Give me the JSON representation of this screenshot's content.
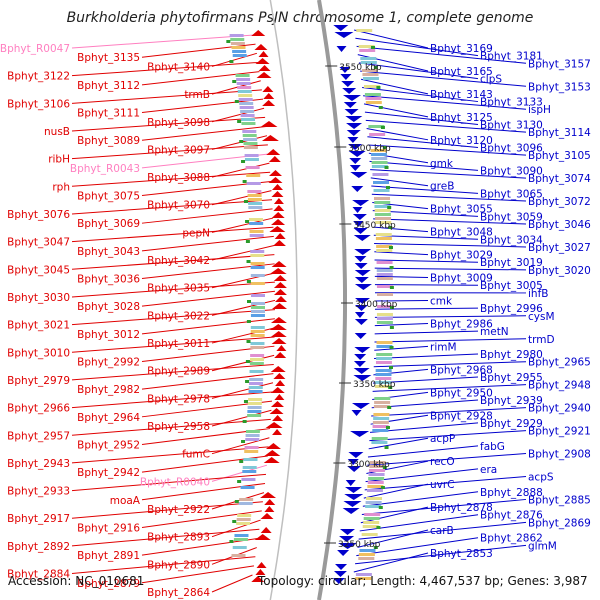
{
  "title": "Burkholderia phytofirmans PsJN chromosome 1, complete genome",
  "accession": "Accession: NC_010681",
  "footer": "Topology: circular; Length: 4,467,537 bp; Genes: 3,987",
  "colors": {
    "left_gene": "#e00000",
    "left_rna": "#ff7fc0",
    "right_gene": "#0000cc",
    "backbone": "#9a9a9a",
    "tick": "#2a9a2a"
  },
  "kbp_labels": [
    "3550 kbp",
    "3500 kbp",
    "3450 kbp",
    "3400 kbp",
    "3350 kbp",
    "3300 kbp",
    "3250 kbp"
  ],
  "left_labels": [
    {
      "t": "Bphyt_R0047",
      "rna": true
    },
    {
      "t": "Bphyt_3135"
    },
    {
      "t": "Bphyt_3140"
    },
    {
      "t": "Bphyt_3122"
    },
    {
      "t": "Bphyt_3112"
    },
    {
      "t": "trmB"
    },
    {
      "t": "Bphyt_3106"
    },
    {
      "t": "Bphyt_3111"
    },
    {
      "t": "Bphyt_3098"
    },
    {
      "t": "nusB"
    },
    {
      "t": "Bphyt_3089"
    },
    {
      "t": "Bphyt_3097"
    },
    {
      "t": "ribH"
    },
    {
      "t": "Bphyt_R0043",
      "rna": true
    },
    {
      "t": "Bphyt_3088"
    },
    {
      "t": "rph"
    },
    {
      "t": "Bphyt_3075"
    },
    {
      "t": "Bphyt_3070"
    },
    {
      "t": "Bphyt_3076"
    },
    {
      "t": "Bphyt_3069"
    },
    {
      "t": "pepN"
    },
    {
      "t": "Bphyt_3047"
    },
    {
      "t": "Bphyt_3043"
    },
    {
      "t": "Bphyt_3042"
    },
    {
      "t": "Bphyt_3045"
    },
    {
      "t": "Bphyt_3036"
    },
    {
      "t": "Bphyt_3035"
    },
    {
      "t": "Bphyt_3030"
    },
    {
      "t": "Bphyt_3028"
    },
    {
      "t": "Bphyt_3022"
    },
    {
      "t": "Bphyt_3021"
    },
    {
      "t": "Bphyt_3012"
    },
    {
      "t": "Bphyt_3011"
    },
    {
      "t": "Bphyt_3010"
    },
    {
      "t": "Bphyt_2992"
    },
    {
      "t": "Bphyt_2989"
    },
    {
      "t": "Bphyt_2979"
    },
    {
      "t": "Bphyt_2982"
    },
    {
      "t": "Bphyt_2978"
    },
    {
      "t": "Bphyt_2966"
    },
    {
      "t": "Bphyt_2964"
    },
    {
      "t": "Bphyt_2958"
    },
    {
      "t": "Bphyt_2957"
    },
    {
      "t": "Bphyt_2952"
    },
    {
      "t": "fumC"
    },
    {
      "t": "Bphyt_2943"
    },
    {
      "t": "Bphyt_2942"
    },
    {
      "t": "Bphyt_R0040",
      "rna": true
    },
    {
      "t": "Bphyt_2933"
    },
    {
      "t": "moaA"
    },
    {
      "t": "Bphyt_2922"
    },
    {
      "t": "Bphyt_2917"
    },
    {
      "t": "Bphyt_2916"
    },
    {
      "t": "Bphyt_2893"
    },
    {
      "t": "Bphyt_2892"
    },
    {
      "t": "Bphyt_2891"
    },
    {
      "t": "Bphyt_2890"
    },
    {
      "t": "Bphyt_2884"
    },
    {
      "t": "Bphyt_2879"
    },
    {
      "t": "Bphyt_2864"
    }
  ],
  "right_labels": [
    {
      "t": "Bphyt_3169"
    },
    {
      "t": "Bphyt_3181"
    },
    {
      "t": "Bphyt_3157"
    },
    {
      "t": "Bphyt_3165"
    },
    {
      "t": "clpS"
    },
    {
      "t": "Bphyt_3153"
    },
    {
      "t": "Bphyt_3143"
    },
    {
      "t": "Bphyt_3133"
    },
    {
      "t": "ispH"
    },
    {
      "t": "Bphyt_3125"
    },
    {
      "t": "Bphyt_3130"
    },
    {
      "t": "Bphyt_3114"
    },
    {
      "t": "Bphyt_3120"
    },
    {
      "t": "Bphyt_3096"
    },
    {
      "t": "Bphyt_3105"
    },
    {
      "t": "gmk"
    },
    {
      "t": "Bphyt_3090"
    },
    {
      "t": "Bphyt_3074"
    },
    {
      "t": "greB"
    },
    {
      "t": "Bphyt_3065"
    },
    {
      "t": "Bphyt_3072"
    },
    {
      "t": "Bphyt_3055"
    },
    {
      "t": "Bphyt_3059"
    },
    {
      "t": "Bphyt_3046"
    },
    {
      "t": "Bphyt_3048"
    },
    {
      "t": "Bphyt_3034"
    },
    {
      "t": "Bphyt_3027"
    },
    {
      "t": "Bphyt_3029"
    },
    {
      "t": "Bphyt_3019"
    },
    {
      "t": "Bphyt_3020"
    },
    {
      "t": "Bphyt_3009"
    },
    {
      "t": "Bphyt_3005"
    },
    {
      "t": "ihfB"
    },
    {
      "t": "cmk"
    },
    {
      "t": "Bphyt_2996"
    },
    {
      "t": "cysM"
    },
    {
      "t": "Bphyt_2986"
    },
    {
      "t": "metN"
    },
    {
      "t": "trmD"
    },
    {
      "t": "rimM"
    },
    {
      "t": "Bphyt_2980"
    },
    {
      "t": "Bphyt_2965"
    },
    {
      "t": "Bphyt_2968"
    },
    {
      "t": "Bphyt_2955"
    },
    {
      "t": "Bphyt_2948"
    },
    {
      "t": "Bphyt_2950"
    },
    {
      "t": "Bphyt_2939"
    },
    {
      "t": "Bphyt_2940"
    },
    {
      "t": "Bphyt_2928"
    },
    {
      "t": "Bphyt_2929"
    },
    {
      "t": "Bphyt_2921"
    },
    {
      "t": "acpP"
    },
    {
      "t": "fabG"
    },
    {
      "t": "Bphyt_2908"
    },
    {
      "t": "recO"
    },
    {
      "t": "era"
    },
    {
      "t": "acpS"
    },
    {
      "t": "uvrC"
    },
    {
      "t": "Bphyt_2888"
    },
    {
      "t": "Bphyt_2885"
    },
    {
      "t": "Bphyt_2878"
    },
    {
      "t": "Bphyt_2876"
    },
    {
      "t": "Bphyt_2869"
    },
    {
      "t": "carB"
    },
    {
      "t": "Bphyt_2862"
    },
    {
      "t": "glmM"
    },
    {
      "t": "Bphyt_2853"
    }
  ]
}
